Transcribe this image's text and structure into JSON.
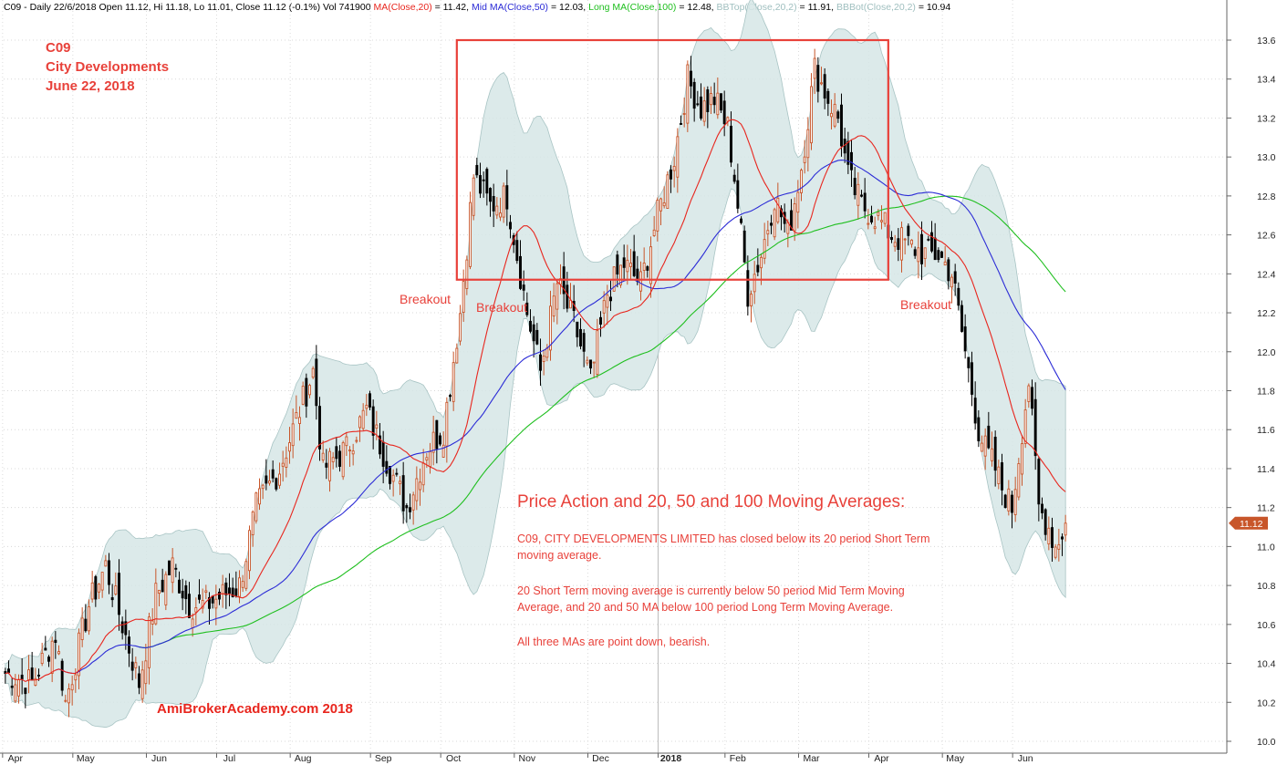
{
  "header": {
    "segments": [
      {
        "text": "C09 - Daily 22/6/2018 Open 11.12, Hi 11.18, Lo 11.01, Close 11.12 (-0.1%) Vol 741900 ",
        "color": "#000000"
      },
      {
        "text": "MA(Close,20)",
        "color": "#e8261e"
      },
      {
        "text": " = 11.42, ",
        "color": "#000000"
      },
      {
        "text": "Mid MA(Close,50)",
        "color": "#2b2bd6"
      },
      {
        "text": " = 12.03, ",
        "color": "#000000"
      },
      {
        "text": "Long MA(Close,100)",
        "color": "#1fbf1f"
      },
      {
        "text": " = 12.48, ",
        "color": "#000000"
      },
      {
        "text": "BBTop(Close,20,2)",
        "color": "#9fbfbf"
      },
      {
        "text": " = 11.91, ",
        "color": "#000000"
      },
      {
        "text": "BBBot(Close,20,2)",
        "color": "#9fbfbf"
      },
      {
        "text": " = 10.94",
        "color": "#000000"
      }
    ]
  },
  "title_block": {
    "code": "C09",
    "name": "City Developments",
    "date": "June 22, 2018"
  },
  "watermark": "AmiBrokerAcademy.com  2018",
  "price_tag": "11.12",
  "annotations": {
    "breakout_1": "Breakout",
    "breakout_2": "Breakout",
    "breakout_3": "Breakout",
    "heading": "Price Action and 20, 50 and 100 Moving Averages:",
    "line1": "C09, CITY DEVELOPMENTS LIMITED has closed below its 20 period Short Term",
    "line2": "moving average.",
    "line3": "20 Short Term moving average is currently below 50 period Mid Term Moving",
    "line4": "Average, and 20 and 50 MA below 100 period Long Term Moving Average.",
    "line5": "All three MAs are point down, bearish."
  },
  "colors": {
    "up_candle": "#c8562a",
    "down_candle": "#000000",
    "ma20": "#e8261e",
    "ma50": "#2b2bd6",
    "ma100": "#1fbf1f",
    "band_fill": "#d6e6e6",
    "band_edge": "#a8c4c4",
    "box": "#e8413a",
    "annotation": "#e8413a"
  },
  "chart_data": {
    "type": "candlestick",
    "ylim": [
      9.95,
      13.65
    ],
    "y_ticks": [
      "10.0",
      "10.2",
      "10.4",
      "10.6",
      "10.8",
      "11.0",
      "11.2",
      "11.4",
      "11.6",
      "11.8",
      "12.0",
      "12.2",
      "12.4",
      "12.6",
      "12.8",
      "13.0",
      "13.2",
      "13.4",
      "13.6"
    ],
    "month_labels": [
      "Apr",
      "May",
      "Jun",
      "Jul",
      "Aug",
      "Sep",
      "Oct",
      "Nov",
      "Dec",
      "2018",
      "Feb",
      "Mar",
      "Apr",
      "May",
      "Jun"
    ],
    "month_positions": [
      0,
      21,
      43,
      64,
      86,
      110,
      131,
      153,
      175,
      196,
      216,
      238,
      259,
      281,
      302
    ],
    "total_bars": 318,
    "grid": "vertical-and-horizontal",
    "close_anchors": [
      [
        0,
        10.35
      ],
      [
        8,
        10.3
      ],
      [
        15,
        10.55
      ],
      [
        18,
        10.2
      ],
      [
        25,
        10.7
      ],
      [
        30,
        10.9
      ],
      [
        35,
        10.6
      ],
      [
        40,
        10.3
      ],
      [
        45,
        10.75
      ],
      [
        50,
        10.9
      ],
      [
        55,
        10.7
      ],
      [
        60,
        10.7
      ],
      [
        65,
        10.75
      ],
      [
        70,
        10.8
      ],
      [
        75,
        11.2
      ],
      [
        82,
        11.4
      ],
      [
        88,
        11.7
      ],
      [
        92,
        11.9
      ],
      [
        95,
        11.4
      ],
      [
        102,
        11.5
      ],
      [
        108,
        11.7
      ],
      [
        115,
        11.4
      ],
      [
        120,
        11.2
      ],
      [
        126,
        11.5
      ],
      [
        131,
        11.6
      ],
      [
        136,
        12.2
      ],
      [
        140,
        12.9
      ],
      [
        145,
        12.75
      ],
      [
        150,
        12.8
      ],
      [
        156,
        12.2
      ],
      [
        160,
        11.9
      ],
      [
        165,
        12.35
      ],
      [
        170,
        12.15
      ],
      [
        175,
        11.85
      ],
      [
        180,
        12.3
      ],
      [
        185,
        12.45
      ],
      [
        190,
        12.35
      ],
      [
        195,
        12.7
      ],
      [
        200,
        13.0
      ],
      [
        204,
        13.4
      ],
      [
        208,
        13.25
      ],
      [
        212,
        13.3
      ],
      [
        216,
        13.15
      ],
      [
        218,
        12.9
      ],
      [
        222,
        12.3
      ],
      [
        226,
        12.5
      ],
      [
        230,
        12.8
      ],
      [
        234,
        12.6
      ],
      [
        238,
        12.95
      ],
      [
        242,
        13.45
      ],
      [
        246,
        13.3
      ],
      [
        249,
        13.2
      ],
      [
        252,
        12.9
      ],
      [
        256,
        12.75
      ],
      [
        260,
        12.7
      ],
      [
        265,
        12.6
      ],
      [
        270,
        12.55
      ],
      [
        275,
        12.5
      ],
      [
        279,
        12.5
      ],
      [
        283,
        12.4
      ],
      [
        285,
        12.2
      ],
      [
        288,
        11.9
      ],
      [
        291,
        11.6
      ],
      [
        293,
        11.5
      ],
      [
        296,
        11.4
      ],
      [
        298,
        11.3
      ],
      [
        301,
        11.2
      ],
      [
        304,
        11.6
      ],
      [
        306,
        11.85
      ],
      [
        309,
        11.2
      ],
      [
        312,
        11.1
      ],
      [
        314,
        11.0
      ],
      [
        317,
        11.12
      ]
    ],
    "last_close": 11.12,
    "series": [
      {
        "name": "MA(Close,20)",
        "final_value": 11.42
      },
      {
        "name": "Mid MA(Close,50)",
        "final_value": 12.03
      },
      {
        "name": "Long MA(Close,100)",
        "final_value": 12.48
      },
      {
        "name": "BBTop(Close,20,2)",
        "final_value": 11.91
      },
      {
        "name": "BBBot(Close,20,2)",
        "final_value": 10.94
      }
    ],
    "highlight_box": {
      "x_start_bar": 135,
      "x_end_bar": 264,
      "y_low": 12.37,
      "y_high": 13.6
    }
  }
}
